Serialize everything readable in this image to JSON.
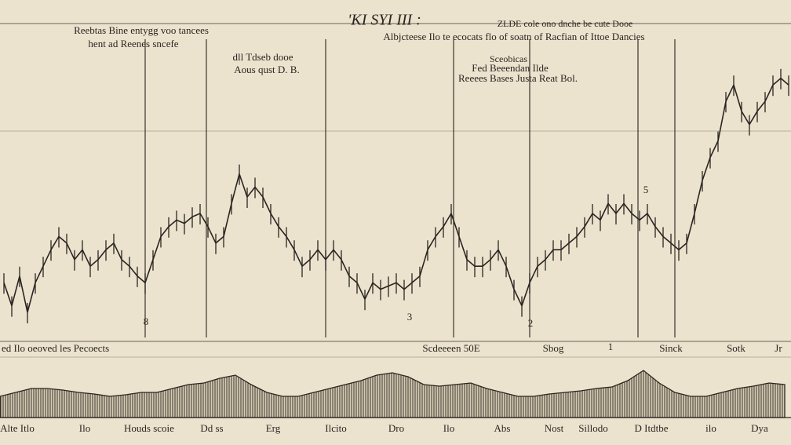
{
  "header": {
    "left": [
      "Reebtas Bine entygg voo tancees",
      "hent ad Reenes sncefe"
    ],
    "right": [
      "ZLDE cole ono dnche be cute Dooe",
      "Albjcteese Ilo te ecocats flo of soatn of Racfian of Ittoe Dancies"
    ]
  },
  "notes": [
    "dll Tdseb dooe",
    "Aous qust D. B.",
    "Sceobicas",
    "Fed Beeendan Ilde",
    "Reeees Bases Justa Reat Bol.",
    "8",
    "3",
    "2",
    "5"
  ],
  "mid_labels": [
    "ed Ilo oeoved les Pecoects",
    "Scdeeeen 50E",
    "Sbog",
    "1",
    "Sinck",
    "Sotk",
    "Jr"
  ],
  "bottom_labels": [
    "Alte Itlo",
    "Ilo",
    "Houds scoie",
    "Dd ss",
    "Erg",
    "Ilcito",
    "Dro",
    "Ilo",
    "Abs",
    "Nost",
    "Sillodo",
    "D Itdtbe",
    "ilo",
    "Dya"
  ],
  "chart_data": [
    {
      "type": "line",
      "title": "'KI SYI III :",
      "color": "#2a2520",
      "ylim": [
        0,
        100
      ],
      "markers": [
        18,
        25.8,
        41,
        57.3,
        67,
        80.8,
        85.5
      ],
      "values": [
        19,
        12,
        21,
        10,
        19,
        24,
        29,
        33,
        31,
        26,
        29,
        24,
        26,
        29,
        31,
        26,
        24,
        21,
        19,
        26,
        33,
        36,
        38,
        37,
        39,
        40,
        36,
        31,
        33,
        43,
        52,
        45,
        48,
        45,
        40,
        36,
        33,
        29,
        24,
        26,
        29,
        26,
        29,
        26,
        21,
        19,
        14,
        19,
        17,
        18,
        19,
        17,
        19,
        21,
        29,
        33,
        36,
        40,
        33,
        26,
        24,
        24,
        26,
        29,
        24,
        17,
        12,
        19,
        24,
        26,
        29,
        29,
        31,
        33,
        36,
        40,
        38,
        43,
        40,
        43,
        40,
        38,
        40,
        36,
        33,
        31,
        29,
        31,
        40,
        50,
        57,
        62,
        74,
        79,
        71,
        67,
        71,
        74,
        79,
        81,
        79
      ]
    },
    {
      "type": "area",
      "color": "#2a2520",
      "ylim": [
        0,
        80
      ],
      "values": [
        27,
        32,
        37,
        37,
        35,
        32,
        30,
        27,
        29,
        32,
        32,
        37,
        42,
        44,
        50,
        54,
        42,
        32,
        27,
        27,
        32,
        37,
        42,
        47,
        54,
        57,
        52,
        42,
        40,
        42,
        44,
        37,
        32,
        27,
        27,
        30,
        32,
        34,
        37,
        39,
        47,
        60,
        44,
        32,
        27,
        27,
        32,
        37,
        40,
        44,
        42
      ]
    }
  ]
}
